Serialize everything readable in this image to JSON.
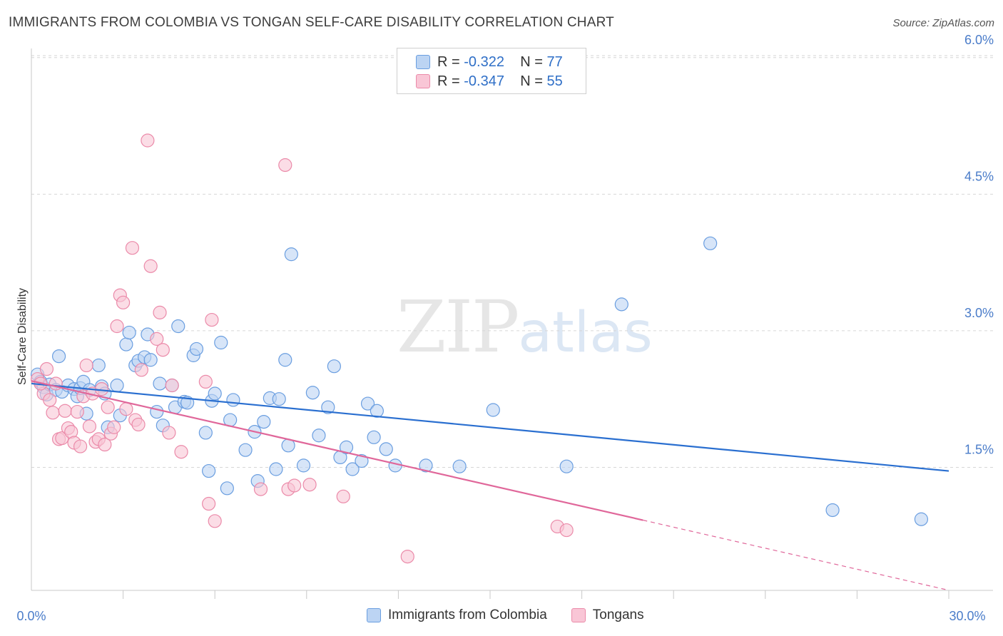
{
  "title": "IMMIGRANTS FROM COLOMBIA VS TONGAN SELF-CARE DISABILITY CORRELATION CHART",
  "source": "Source: ZipAtlas.com",
  "watermark": {
    "zip": "ZIP",
    "atlas": "atlas"
  },
  "legend": {
    "rows": [
      {
        "r_label": "R =",
        "r_value": "-0.322",
        "n_label": "N =",
        "n_value": "77"
      },
      {
        "r_label": "R =",
        "r_value": "-0.347",
        "n_label": "N =",
        "n_value": "55"
      }
    ]
  },
  "colors": {
    "blue_fill": "#bcd4f3",
    "blue_stroke": "#6a9ee0",
    "blue_line": "#2a6fd0",
    "pink_fill": "#f9c6d6",
    "pink_stroke": "#eb8aa9",
    "pink_line": "#e0679a",
    "grid": "#d6d6d6",
    "axis_text": "#4a7cc9"
  },
  "chart_data": {
    "type": "scatter",
    "title": "IMMIGRANTS FROM COLOMBIA VS TONGAN SELF-CARE DISABILITY CORRELATION CHART",
    "xlabel": "",
    "ylabel": "Self-Care Disability",
    "xlim": [
      0,
      30
    ],
    "ylim": [
      0,
      6.3
    ],
    "x_tick_labels": [
      "0.0%",
      "30.0%"
    ],
    "y_ticks": [
      1.5,
      3.0,
      4.5,
      6.0
    ],
    "y_tick_labels": [
      "1.5%",
      "3.0%",
      "4.5%",
      "6.0%"
    ],
    "grid": "horizontal dashed",
    "legend_position": "top-center",
    "series": [
      {
        "name": "Immigrants from Colombia",
        "color": "#6a9ee0",
        "trend": {
          "x0": 0,
          "y0": 2.42,
          "x1": 30,
          "y1": 1.46
        },
        "points": [
          [
            0.2,
            2.52
          ],
          [
            0.3,
            2.44
          ],
          [
            0.4,
            2.38
          ],
          [
            0.5,
            2.3
          ],
          [
            0.6,
            2.41
          ],
          [
            0.8,
            2.35
          ],
          [
            0.9,
            2.72
          ],
          [
            1.0,
            2.33
          ],
          [
            1.2,
            2.4
          ],
          [
            1.4,
            2.36
          ],
          [
            1.5,
            2.28
          ],
          [
            1.6,
            2.37
          ],
          [
            1.7,
            2.44
          ],
          [
            1.8,
            2.09
          ],
          [
            1.9,
            2.35
          ],
          [
            2.2,
            2.62
          ],
          [
            2.3,
            2.39
          ],
          [
            2.4,
            2.31
          ],
          [
            2.5,
            1.94
          ],
          [
            2.8,
            2.4
          ],
          [
            2.9,
            2.07
          ],
          [
            3.1,
            2.85
          ],
          [
            3.2,
            2.98
          ],
          [
            3.4,
            2.62
          ],
          [
            3.5,
            2.67
          ],
          [
            3.7,
            2.71
          ],
          [
            3.8,
            2.96
          ],
          [
            3.9,
            2.68
          ],
          [
            4.1,
            2.11
          ],
          [
            4.2,
            2.42
          ],
          [
            4.3,
            1.96
          ],
          [
            4.6,
            2.4
          ],
          [
            4.7,
            2.16
          ],
          [
            4.8,
            3.05
          ],
          [
            5.0,
            2.22
          ],
          [
            5.1,
            2.21
          ],
          [
            5.3,
            2.73
          ],
          [
            5.4,
            2.8
          ],
          [
            5.7,
            1.88
          ],
          [
            5.8,
            1.46
          ],
          [
            5.9,
            2.23
          ],
          [
            6.0,
            2.31
          ],
          [
            6.2,
            2.87
          ],
          [
            6.4,
            1.27
          ],
          [
            6.5,
            2.02
          ],
          [
            6.6,
            2.24
          ],
          [
            7.0,
            1.69
          ],
          [
            7.3,
            1.89
          ],
          [
            7.4,
            1.35
          ],
          [
            7.6,
            2.0
          ],
          [
            7.8,
            2.26
          ],
          [
            8.0,
            1.48
          ],
          [
            8.1,
            2.25
          ],
          [
            8.3,
            2.68
          ],
          [
            8.4,
            1.74
          ],
          [
            8.5,
            3.84
          ],
          [
            8.9,
            1.52
          ],
          [
            9.2,
            2.32
          ],
          [
            9.4,
            1.85
          ],
          [
            9.7,
            2.16
          ],
          [
            9.9,
            2.61
          ],
          [
            10.1,
            1.61
          ],
          [
            10.3,
            1.72
          ],
          [
            10.5,
            1.48
          ],
          [
            10.8,
            1.57
          ],
          [
            11.0,
            2.2
          ],
          [
            11.2,
            1.83
          ],
          [
            11.3,
            2.12
          ],
          [
            11.6,
            1.7
          ],
          [
            11.9,
            1.52
          ],
          [
            12.9,
            1.52
          ],
          [
            14.0,
            1.51
          ],
          [
            15.1,
            2.13
          ],
          [
            17.5,
            1.51
          ],
          [
            19.3,
            3.29
          ],
          [
            22.2,
            3.96
          ],
          [
            26.2,
            1.03
          ],
          [
            29.1,
            0.93
          ]
        ]
      },
      {
        "name": "Tongans",
        "color": "#eb8aa9",
        "trend": {
          "x0": 0,
          "y0": 2.45,
          "x1": 20,
          "y1": 0.92
        },
        "trend_dashed": {
          "x0": 20,
          "y0": 0.92,
          "x1": 30,
          "y1": 0.15
        },
        "points": [
          [
            0.2,
            2.47
          ],
          [
            0.4,
            2.31
          ],
          [
            0.5,
            2.58
          ],
          [
            0.6,
            2.24
          ],
          [
            0.7,
            2.1
          ],
          [
            0.8,
            2.42
          ],
          [
            0.9,
            1.81
          ],
          [
            1.0,
            1.82
          ],
          [
            1.1,
            2.12
          ],
          [
            1.2,
            1.93
          ],
          [
            1.3,
            1.89
          ],
          [
            1.4,
            1.77
          ],
          [
            1.5,
            2.11
          ],
          [
            1.6,
            1.73
          ],
          [
            1.7,
            2.28
          ],
          [
            1.8,
            2.62
          ],
          [
            1.9,
            1.95
          ],
          [
            2.0,
            2.31
          ],
          [
            2.1,
            1.78
          ],
          [
            2.2,
            1.81
          ],
          [
            2.3,
            2.36
          ],
          [
            2.4,
            1.75
          ],
          [
            2.5,
            2.16
          ],
          [
            2.6,
            1.87
          ],
          [
            2.7,
            1.94
          ],
          [
            2.8,
            3.05
          ],
          [
            2.9,
            3.39
          ],
          [
            3.0,
            3.31
          ],
          [
            3.1,
            2.14
          ],
          [
            3.3,
            3.91
          ],
          [
            3.4,
            2.02
          ],
          [
            3.5,
            1.97
          ],
          [
            3.6,
            2.57
          ],
          [
            3.8,
            5.09
          ],
          [
            3.9,
            3.71
          ],
          [
            4.1,
            2.91
          ],
          [
            4.2,
            3.2
          ],
          [
            4.3,
            2.79
          ],
          [
            4.5,
            1.88
          ],
          [
            4.6,
            2.4
          ],
          [
            4.9,
            1.67
          ],
          [
            5.7,
            2.44
          ],
          [
            5.8,
            1.1
          ],
          [
            5.9,
            3.12
          ],
          [
            6.0,
            0.91
          ],
          [
            7.5,
            1.26
          ],
          [
            8.3,
            4.82
          ],
          [
            8.4,
            1.26
          ],
          [
            8.6,
            1.3
          ],
          [
            9.1,
            1.31
          ],
          [
            10.2,
            1.18
          ],
          [
            17.2,
            0.85
          ],
          [
            17.5,
            0.81
          ],
          [
            12.3,
            0.52
          ],
          [
            0.3,
            2.42
          ]
        ]
      }
    ]
  },
  "bottom_legend": {
    "items": [
      "Immigrants from Colombia",
      "Tongans"
    ]
  }
}
